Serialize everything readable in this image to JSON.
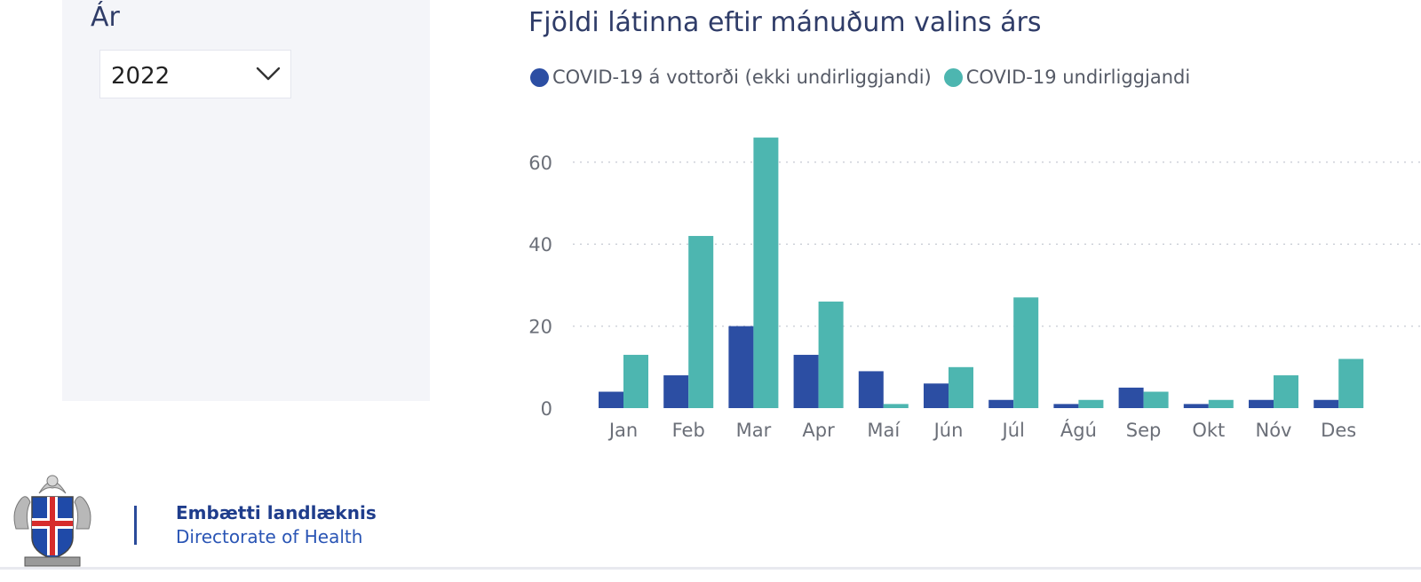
{
  "filter": {
    "label": "Ár",
    "selected_year": "2022",
    "icon": "chevron-down-icon"
  },
  "chart_data": {
    "type": "bar",
    "title": "Fjöldi látinna eftir mánuðum valins árs",
    "categories": [
      "Jan",
      "Feb",
      "Mar",
      "Apr",
      "Maí",
      "Jún",
      "Júl",
      "Ágú",
      "Sep",
      "Okt",
      "Nóv",
      "Des"
    ],
    "series": [
      {
        "name": "COVID-19 á vottorði (ekki undirliggjandi)",
        "color": "#2c4ea3",
        "values": [
          4,
          8,
          20,
          13,
          9,
          6,
          2,
          1,
          5,
          1,
          2,
          2
        ]
      },
      {
        "name": "COVID-19 undirliggjandi",
        "color": "#4db6b0",
        "values": [
          13,
          42,
          66,
          26,
          1,
          10,
          27,
          2,
          4,
          2,
          8,
          12
        ]
      }
    ],
    "yticks": [
      0,
      20,
      40,
      60
    ],
    "ylim": [
      0,
      70
    ],
    "grid": true,
    "legend_position": "top-left"
  },
  "footer": {
    "org_name_is": "Embætti landlæknis",
    "org_name_en": "Directorate of Health",
    "logo": "coat-of-arms-of-iceland"
  }
}
